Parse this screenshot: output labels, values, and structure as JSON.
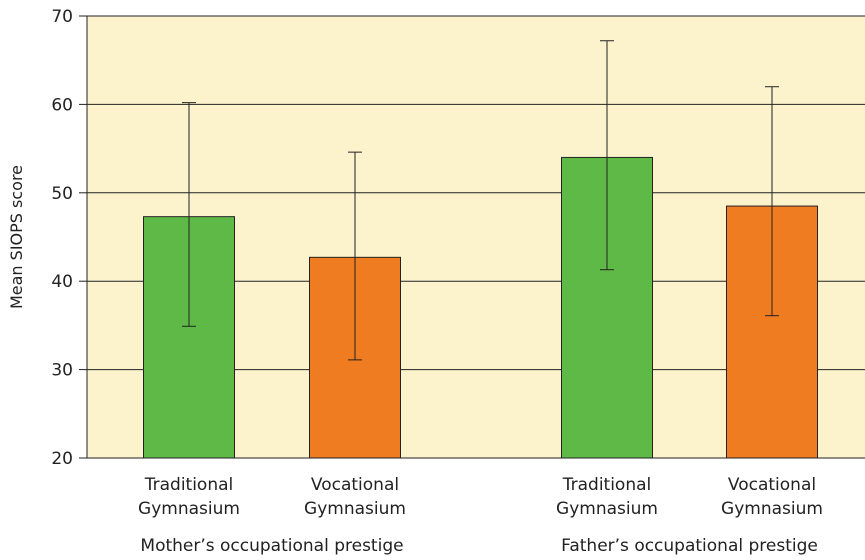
{
  "chart_data": {
    "type": "bar",
    "ylabel": "Mean SIOPS score",
    "ylim": [
      20,
      70
    ],
    "yticks": [
      20,
      30,
      40,
      50,
      60,
      70
    ],
    "grid": true,
    "background_color": "#fcf3cc",
    "groups": [
      {
        "label": "Mother’s occupational prestige",
        "bars": [
          {
            "category": [
              "Traditional",
              "Gymnasium"
            ],
            "value": 47.3,
            "err_low": 34.9,
            "err_high": 60.2,
            "color": "#5eb946"
          },
          {
            "category": [
              "Vocational",
              "Gymnasium"
            ],
            "value": 42.7,
            "err_low": 31.1,
            "err_high": 54.6,
            "color": "#f07c22"
          }
        ]
      },
      {
        "label": "Father’s occupational prestige",
        "bars": [
          {
            "category": [
              "Traditional",
              "Gymnasium"
            ],
            "value": 54.0,
            "err_low": 41.3,
            "err_high": 67.2,
            "color": "#5eb946"
          },
          {
            "category": [
              "Vocational",
              "Gymnasium"
            ],
            "value": 48.5,
            "err_low": 36.1,
            "err_high": 62.0,
            "color": "#f07c22"
          }
        ]
      }
    ]
  }
}
